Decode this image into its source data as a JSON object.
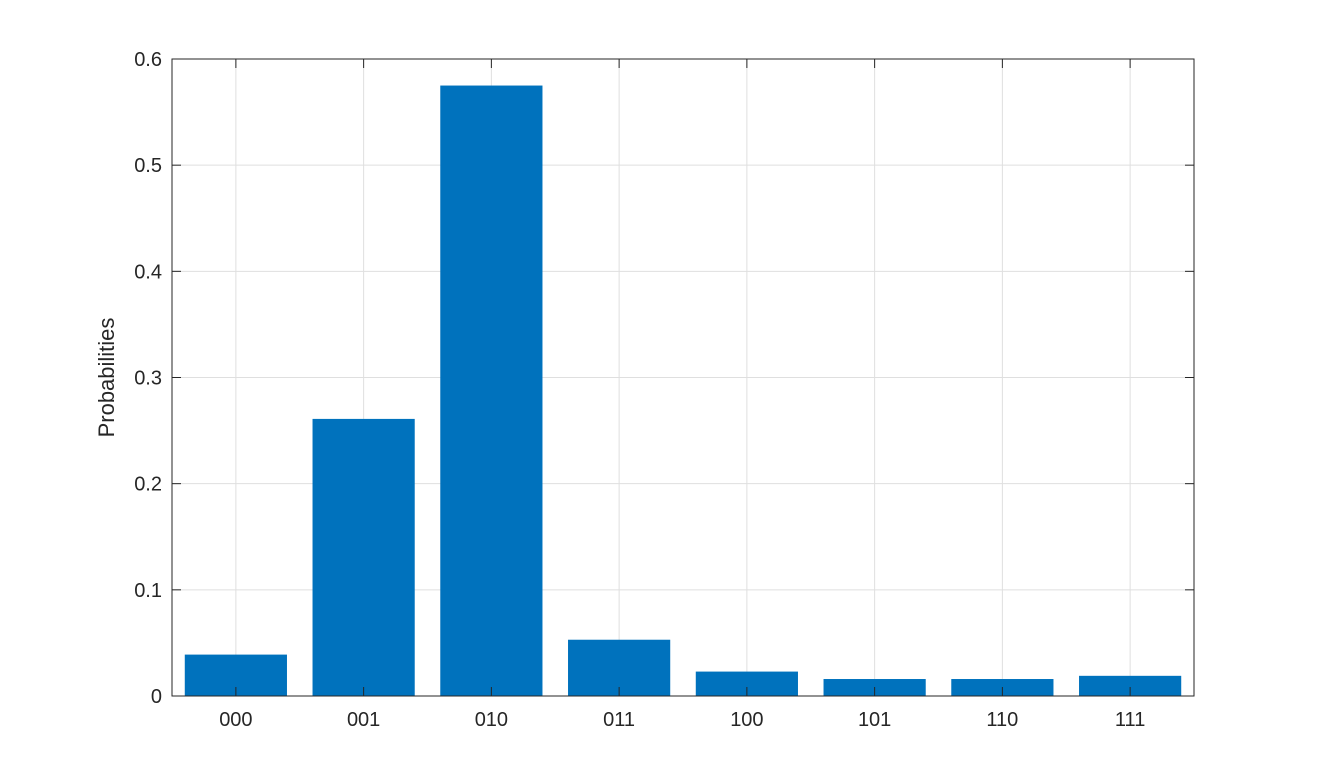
{
  "chart_data": {
    "type": "bar",
    "categories": [
      "000",
      "001",
      "010",
      "011",
      "100",
      "101",
      "110",
      "111"
    ],
    "values": [
      0.039,
      0.261,
      0.575,
      0.053,
      0.023,
      0.016,
      0.016,
      0.019
    ],
    "title": "",
    "xlabel": "",
    "ylabel": "Probabilities",
    "ylim": [
      0,
      0.6
    ],
    "yticks": [
      "0",
      "0.1",
      "0.2",
      "0.3",
      "0.4",
      "0.5",
      "0.6"
    ],
    "grid": true,
    "colors": {
      "bar": "#0072BD",
      "grid": "#dfdfdf",
      "axis": "#262626"
    }
  }
}
